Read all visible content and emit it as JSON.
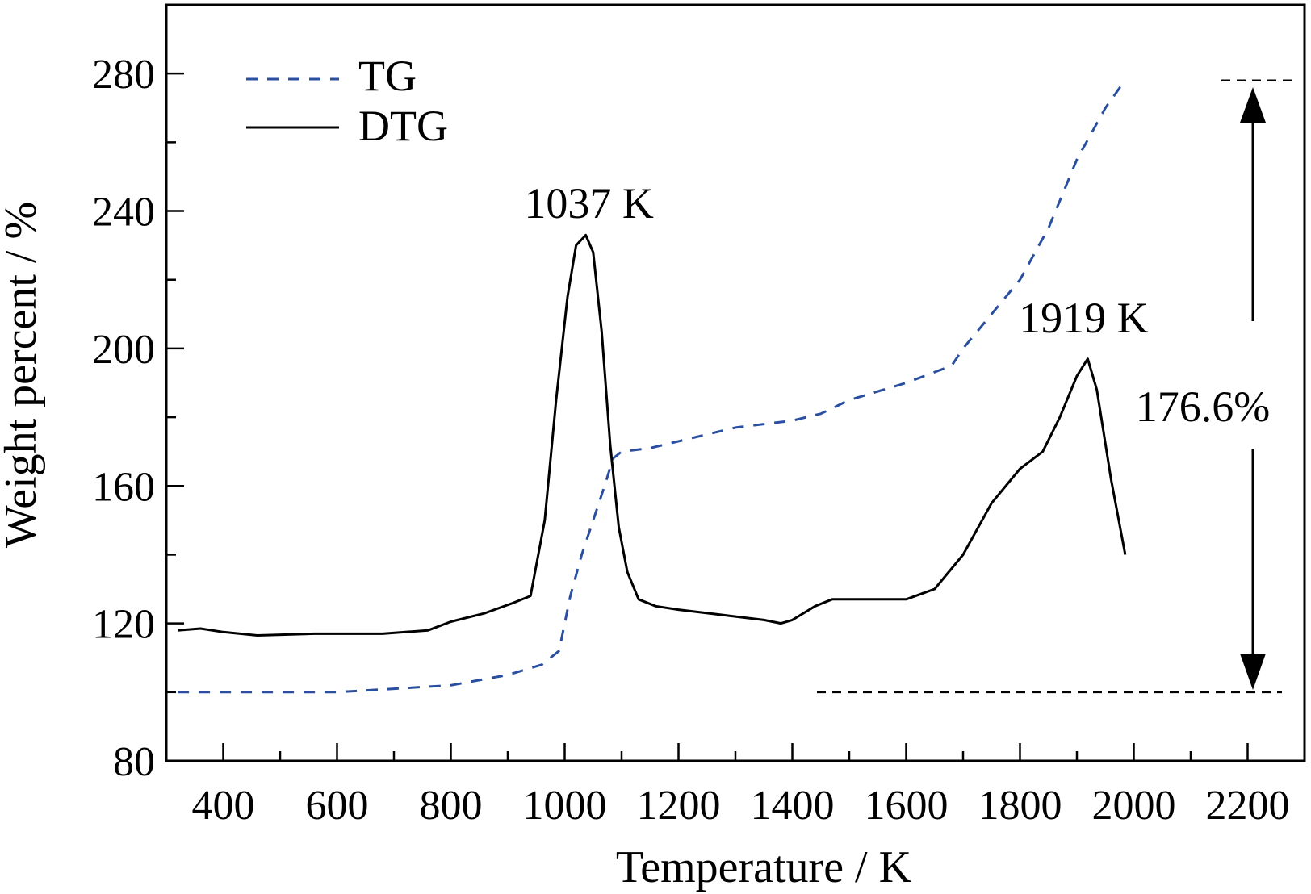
{
  "chart_data": {
    "type": "line",
    "xlabel": "Temperature / K",
    "ylabel": "Weight percent / %",
    "xlim": [
      300,
      2300
    ],
    "ylim": [
      80,
      300
    ],
    "xticks": [
      400,
      600,
      800,
      1000,
      1200,
      1400,
      1600,
      1800,
      2000,
      2200
    ],
    "yticks": [
      80,
      120,
      160,
      200,
      240,
      280
    ],
    "grid": false,
    "legend_position": "top-left",
    "series": [
      {
        "name": "TG",
        "style": "dashed",
        "color": "#2b4fa0",
        "x": [
          320,
          400,
          500,
          600,
          650,
          700,
          800,
          900,
          960,
          990,
          1010,
          1030,
          1050,
          1070,
          1085,
          1100,
          1150,
          1200,
          1300,
          1400,
          1450,
          1500,
          1600,
          1680,
          1700,
          1750,
          1800,
          1850,
          1900,
          1950,
          1980
        ],
        "values": [
          100,
          100,
          100,
          100,
          100.5,
          101,
          102,
          105,
          108,
          112,
          128,
          140,
          150,
          160,
          168,
          170,
          171,
          173,
          177,
          179,
          181,
          185,
          190,
          195,
          200,
          210,
          220,
          235,
          255,
          270,
          277
        ]
      },
      {
        "name": "DTG",
        "style": "solid",
        "color": "#000000",
        "x": [
          320,
          360,
          400,
          460,
          560,
          680,
          760,
          800,
          860,
          910,
          940,
          965,
          985,
          1005,
          1020,
          1037,
          1050,
          1065,
          1080,
          1095,
          1110,
          1130,
          1160,
          1200,
          1300,
          1350,
          1380,
          1400,
          1440,
          1470,
          1520,
          1600,
          1650,
          1700,
          1750,
          1800,
          1840,
          1870,
          1900,
          1919,
          1935,
          1960,
          1985
        ],
        "values": [
          118,
          118.5,
          117.5,
          116.5,
          117,
          117,
          118,
          120.5,
          123,
          126,
          128,
          150,
          185,
          215,
          230,
          233,
          228,
          205,
          172,
          148,
          135,
          127,
          125,
          124,
          122,
          121,
          120,
          121,
          125,
          127,
          127,
          127,
          130,
          140,
          155,
          165,
          170,
          180,
          192,
          197,
          188,
          162,
          140
        ]
      }
    ],
    "annotations": {
      "peak1": "1037 K",
      "peak2": "1919 K",
      "change": "176.6%",
      "reference_levels": [
        100,
        278
      ]
    }
  }
}
